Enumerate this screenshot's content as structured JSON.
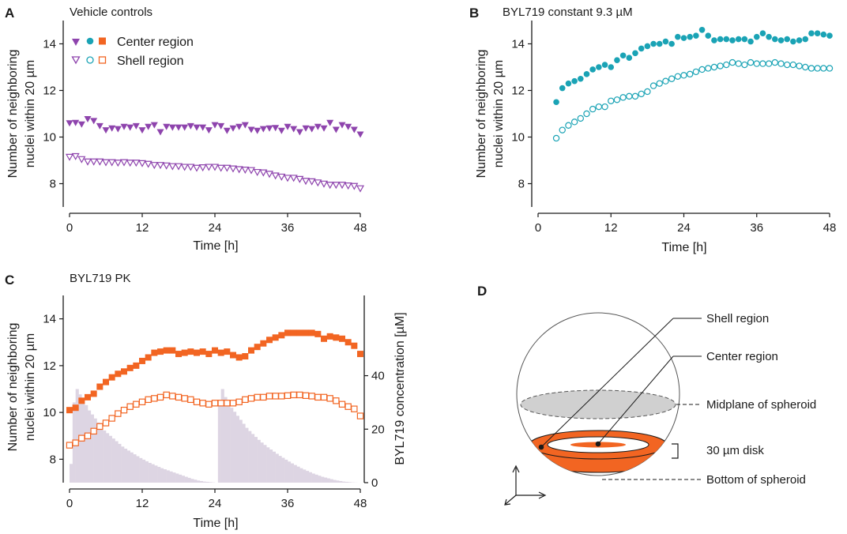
{
  "colors": {
    "purple": "#8e44ad",
    "teal": "#1aa3b5",
    "orange": "#f26522",
    "error_bar": "#333333",
    "histogram": "#ddd5e3",
    "ink": "#1a1a1a",
    "disk_gray": "#d0d0d0"
  },
  "legend": {
    "center_label": "Center region",
    "shell_label": "Shell region"
  },
  "panel_d": {
    "letter": "D",
    "labels": {
      "shell": "Shell region",
      "center": "Center region",
      "midplane": "Midplane of spheroid",
      "disk": "30 µm disk",
      "bottom": "Bottom of spheroid"
    }
  },
  "chart_data": [
    {
      "id": "A",
      "letter": "A",
      "type": "scatter",
      "title": "Vehicle controls",
      "xlabel": "Time [h]",
      "ylabel_lines": [
        "Number of neighboring",
        "nuclei within 20 µm"
      ],
      "xlim": [
        0,
        48
      ],
      "ylim": [
        7,
        15
      ],
      "xticks": [
        0,
        12,
        24,
        36,
        48
      ],
      "yticks": [
        8,
        10,
        12,
        14
      ],
      "series": [
        {
          "name": "Center region",
          "marker": "triangle-down-filled",
          "color": "purple",
          "x": [
            0,
            1,
            2,
            3,
            4,
            5,
            6,
            7,
            8,
            9,
            10,
            11,
            12,
            13,
            14,
            15,
            16,
            17,
            18,
            19,
            20,
            21,
            22,
            23,
            24,
            25,
            26,
            27,
            28,
            29,
            30,
            31,
            32,
            33,
            34,
            35,
            36,
            37,
            38,
            39,
            40,
            41,
            42,
            43,
            44,
            45,
            46,
            47,
            48
          ],
          "y": [
            10.6,
            10.62,
            10.55,
            10.78,
            10.7,
            10.48,
            10.3,
            10.38,
            10.35,
            10.45,
            10.42,
            10.48,
            10.3,
            10.45,
            10.52,
            10.22,
            10.45,
            10.42,
            10.42,
            10.42,
            10.48,
            10.42,
            10.42,
            10.3,
            10.52,
            10.48,
            10.28,
            10.38,
            10.45,
            10.52,
            10.32,
            10.28,
            10.35,
            10.38,
            10.4,
            10.28,
            10.45,
            10.35,
            10.22,
            10.38,
            10.35,
            10.45,
            10.38,
            10.62,
            10.32,
            10.52,
            10.45,
            10.32,
            10.12
          ]
        },
        {
          "name": "Shell region",
          "marker": "triangle-down-open",
          "color": "purple",
          "x": [
            0,
            1,
            2,
            3,
            4,
            5,
            6,
            7,
            8,
            9,
            10,
            11,
            12,
            13,
            14,
            15,
            16,
            17,
            18,
            19,
            20,
            21,
            22,
            23,
            24,
            25,
            26,
            27,
            28,
            29,
            30,
            31,
            32,
            33,
            34,
            35,
            36,
            37,
            38,
            39,
            40,
            41,
            42,
            43,
            44,
            45,
            46,
            47,
            48
          ],
          "y": [
            9.15,
            9.18,
            9.05,
            8.95,
            8.95,
            8.95,
            8.92,
            8.92,
            8.9,
            8.92,
            8.9,
            8.9,
            8.88,
            8.85,
            8.8,
            8.8,
            8.78,
            8.75,
            8.75,
            8.72,
            8.72,
            8.68,
            8.7,
            8.72,
            8.72,
            8.68,
            8.68,
            8.65,
            8.62,
            8.6,
            8.58,
            8.5,
            8.48,
            8.42,
            8.35,
            8.3,
            8.25,
            8.25,
            8.2,
            8.12,
            8.1,
            8.05,
            8.0,
            7.95,
            7.95,
            7.95,
            7.92,
            7.9,
            7.8
          ]
        }
      ]
    },
    {
      "id": "B",
      "letter": "B",
      "type": "scatter",
      "title": "BYL719 constant 9.3 µM",
      "xlabel": "Time [h]",
      "ylabel_lines": [
        "Number of neighboring",
        "nuclei within 20 µm"
      ],
      "xlim": [
        0,
        48
      ],
      "ylim": [
        7,
        15
      ],
      "xticks": [
        0,
        12,
        24,
        36,
        48
      ],
      "yticks": [
        8,
        10,
        12,
        14
      ],
      "series": [
        {
          "name": "Center region",
          "marker": "circle-filled",
          "color": "teal",
          "errorbars": true,
          "x": [
            3,
            4,
            5,
            6,
            7,
            8,
            9,
            10,
            11,
            12,
            13,
            14,
            15,
            16,
            17,
            18,
            19,
            20,
            21,
            22,
            23,
            24,
            25,
            26,
            27,
            28,
            29,
            30,
            31,
            32,
            33,
            34,
            35,
            36,
            37,
            38,
            39,
            40,
            41,
            42,
            43,
            44,
            45,
            46,
            47,
            48
          ],
          "y": [
            11.5,
            12.1,
            12.3,
            12.4,
            12.5,
            12.7,
            12.9,
            13.0,
            13.1,
            13.0,
            13.3,
            13.5,
            13.4,
            13.6,
            13.8,
            13.9,
            14.0,
            14.0,
            14.1,
            14.0,
            14.3,
            14.25,
            14.3,
            14.35,
            14.6,
            14.35,
            14.15,
            14.2,
            14.2,
            14.15,
            14.2,
            14.2,
            14.1,
            14.3,
            14.45,
            14.3,
            14.2,
            14.15,
            14.2,
            14.1,
            14.15,
            14.2,
            14.45,
            14.45,
            14.4,
            14.35
          ],
          "err": [
            0.05,
            0.07,
            0.05,
            0.05,
            0.05,
            0.05,
            0.05,
            0.05,
            0.05,
            0.05,
            0.06,
            0.06,
            0.05,
            0.05,
            0.06,
            0.05,
            0.06,
            0.06,
            0.05,
            0.05,
            0.05,
            0.06,
            0.05,
            0.06,
            0.08,
            0.05,
            0.06,
            0.05,
            0.05,
            0.06,
            0.05,
            0.05,
            0.05,
            0.06,
            0.06,
            0.05,
            0.06,
            0.06,
            0.05,
            0.06,
            0.06,
            0.06,
            0.08,
            0.08,
            0.06,
            0.06
          ]
        },
        {
          "name": "Shell region",
          "marker": "circle-open",
          "color": "teal",
          "x": [
            3,
            4,
            5,
            6,
            7,
            8,
            9,
            10,
            11,
            12,
            13,
            14,
            15,
            16,
            17,
            18,
            19,
            20,
            21,
            22,
            23,
            24,
            25,
            26,
            27,
            28,
            29,
            30,
            31,
            32,
            33,
            34,
            35,
            36,
            37,
            38,
            39,
            40,
            41,
            42,
            43,
            44,
            45,
            46,
            47,
            48
          ],
          "y": [
            9.95,
            10.3,
            10.5,
            10.65,
            10.8,
            11.0,
            11.2,
            11.3,
            11.3,
            11.55,
            11.6,
            11.7,
            11.75,
            11.75,
            11.85,
            11.95,
            12.2,
            12.3,
            12.4,
            12.5,
            12.6,
            12.65,
            12.7,
            12.8,
            12.9,
            12.95,
            13.0,
            13.05,
            13.1,
            13.2,
            13.15,
            13.1,
            13.2,
            13.15,
            13.15,
            13.15,
            13.2,
            13.15,
            13.1,
            13.1,
            13.05,
            13.0,
            12.95,
            12.95,
            12.95,
            12.95
          ]
        }
      ]
    },
    {
      "id": "C",
      "letter": "C",
      "type": "scatter",
      "title": "BYL719 PK",
      "xlabel": "Time [h]",
      "ylabel_lines": [
        "Number of neighboring",
        "nuclei within 20 µm"
      ],
      "y2label": "BYL719 concentration [µM]",
      "xlim": [
        0,
        48
      ],
      "ylim": [
        7,
        15
      ],
      "y2lim": [
        0,
        70
      ],
      "xticks": [
        0,
        12,
        24,
        36,
        48
      ],
      "yticks": [
        8,
        10,
        12,
        14
      ],
      "y2ticks": [
        0,
        20,
        40
      ],
      "concentration": {
        "name": "BYL719 concentration",
        "t": [
          0,
          0.5,
          1,
          1.5,
          2,
          2.5,
          3,
          3.5,
          4,
          4.5,
          5,
          5.5,
          6,
          6.5,
          7,
          7.5,
          8,
          8.5,
          9,
          9.5,
          10,
          10.5,
          11,
          11.5,
          12,
          12.5,
          13,
          13.5,
          14,
          14.5,
          15,
          15.5,
          16,
          16.5,
          17,
          17.5,
          18,
          18.5,
          19,
          19.5,
          20,
          20.5,
          21,
          21.5,
          22,
          22.5,
          23,
          23.5,
          24,
          24.5,
          25,
          25.5,
          26,
          26.5,
          27,
          27.5,
          28,
          28.5,
          29,
          29.5,
          30,
          30.5,
          31,
          31.5,
          32,
          32.5,
          33,
          33.5,
          34,
          34.5,
          35,
          35.5,
          36,
          36.5,
          37,
          37.5,
          38,
          38.5,
          39,
          39.5,
          40,
          40.5,
          41,
          41.5,
          42,
          42.5,
          43,
          43.5,
          44,
          44.5,
          45,
          45.5,
          46,
          46.5,
          47,
          47.5
        ],
        "values": [
          7,
          30,
          35,
          33,
          31,
          29,
          27,
          25.5,
          24,
          22.5,
          21,
          19.5,
          18.5,
          17.5,
          16.5,
          15.5,
          14.5,
          13.5,
          12.7,
          12,
          11.3,
          10.6,
          9.9,
          9.2,
          8.6,
          8,
          7.4,
          6.9,
          6.4,
          5.9,
          5.4,
          5,
          4.6,
          4.2,
          3.8,
          3.4,
          3,
          2.6,
          2.2,
          1.8,
          1.4,
          1.1,
          0.8,
          0.6,
          0.4,
          0.3,
          0.2,
          0.1,
          0,
          31,
          35,
          32,
          30,
          28,
          26.5,
          25,
          23.5,
          22,
          20.5,
          19.3,
          18.2,
          17.1,
          16,
          15,
          14.1,
          13.2,
          12.4,
          11.6,
          10.8,
          10,
          9.3,
          8.6,
          7.9,
          7.2,
          6.6,
          6,
          5.4,
          4.9,
          4.4,
          3.9,
          3.4,
          3,
          2.6,
          2.2,
          1.9,
          1.6,
          1.3,
          1,
          0.8,
          0.6,
          0.4,
          0.3,
          0.2,
          0.1,
          0.05,
          0
        ]
      },
      "series": [
        {
          "name": "Center region",
          "marker": "square-filled",
          "color": "orange",
          "errorbars": true,
          "x": [
            0,
            1,
            2,
            3,
            4,
            5,
            6,
            7,
            8,
            9,
            10,
            11,
            12,
            13,
            14,
            15,
            16,
            17,
            18,
            19,
            20,
            21,
            22,
            23,
            24,
            25,
            26,
            27,
            28,
            29,
            30,
            31,
            32,
            33,
            34,
            35,
            36,
            37,
            38,
            39,
            40,
            41,
            42,
            43,
            44,
            45,
            46,
            47,
            48
          ],
          "y": [
            10.1,
            10.2,
            10.5,
            10.65,
            10.8,
            11.1,
            11.3,
            11.5,
            11.65,
            11.75,
            11.9,
            12.0,
            12.2,
            12.35,
            12.55,
            12.6,
            12.65,
            12.65,
            12.5,
            12.55,
            12.6,
            12.55,
            12.6,
            12.5,
            12.65,
            12.55,
            12.6,
            12.45,
            12.35,
            12.4,
            12.65,
            12.8,
            12.95,
            13.1,
            13.2,
            13.3,
            13.4,
            13.4,
            13.4,
            13.4,
            13.4,
            13.35,
            13.15,
            13.25,
            13.2,
            13.15,
            13.0,
            12.85,
            12.5
          ],
          "err": [
            0.05,
            0.05,
            0.05,
            0.05,
            0.05,
            0.06,
            0.05,
            0.05,
            0.05,
            0.05,
            0.05,
            0.05,
            0.05,
            0.05,
            0.05,
            0.05,
            0.06,
            0.06,
            0.05,
            0.05,
            0.05,
            0.05,
            0.05,
            0.05,
            0.05,
            0.05,
            0.05,
            0.05,
            0.06,
            0.05,
            0.05,
            0.05,
            0.05,
            0.05,
            0.05,
            0.05,
            0.06,
            0.05,
            0.05,
            0.05,
            0.05,
            0.05,
            0.05,
            0.05,
            0.05,
            0.05,
            0.05,
            0.05,
            0.06
          ]
        },
        {
          "name": "Shell region",
          "marker": "square-open",
          "color": "orange",
          "x": [
            0,
            1,
            2,
            3,
            4,
            5,
            6,
            7,
            8,
            9,
            10,
            11,
            12,
            13,
            14,
            15,
            16,
            17,
            18,
            19,
            20,
            21,
            22,
            23,
            24,
            25,
            26,
            27,
            28,
            29,
            30,
            31,
            32,
            33,
            34,
            35,
            36,
            37,
            38,
            39,
            40,
            41,
            42,
            43,
            44,
            45,
            46,
            47,
            48
          ],
          "y": [
            8.6,
            8.7,
            8.9,
            9.0,
            9.2,
            9.4,
            9.55,
            9.75,
            9.95,
            10.1,
            10.25,
            10.35,
            10.45,
            10.55,
            10.6,
            10.65,
            10.75,
            10.7,
            10.65,
            10.6,
            10.55,
            10.45,
            10.4,
            10.35,
            10.4,
            10.4,
            10.4,
            10.4,
            10.45,
            10.55,
            10.6,
            10.65,
            10.65,
            10.7,
            10.7,
            10.7,
            10.72,
            10.75,
            10.75,
            10.72,
            10.7,
            10.65,
            10.65,
            10.6,
            10.5,
            10.35,
            10.25,
            10.15,
            9.85
          ]
        }
      ]
    }
  ]
}
